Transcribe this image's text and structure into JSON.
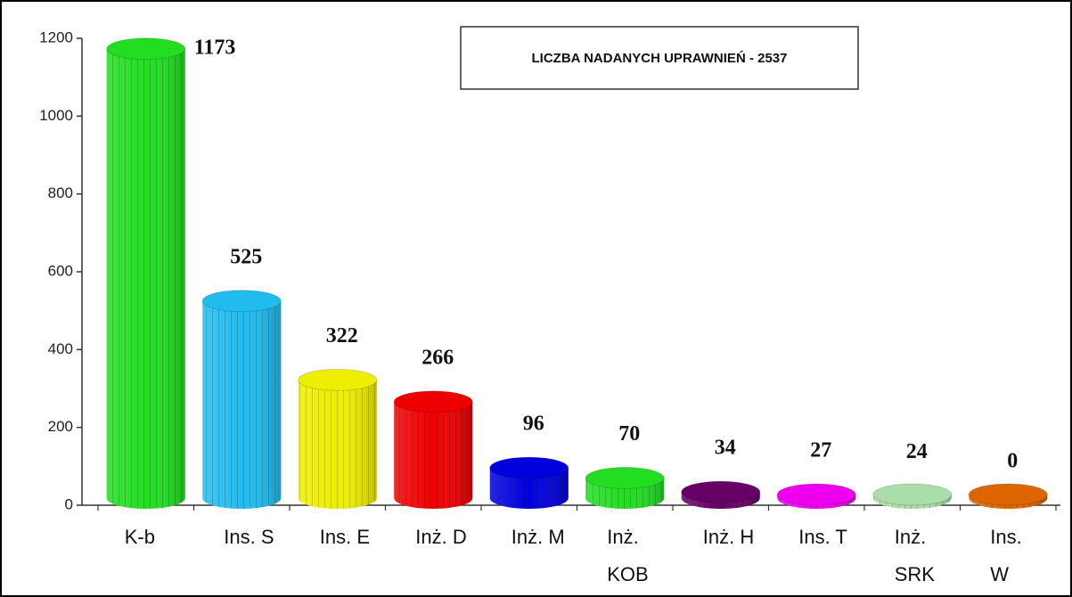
{
  "chart_data": {
    "type": "bar",
    "annotation": "LICZBA NADANYCH  UPRAWNIEŃ  - 2537",
    "categories": [
      "K-b",
      "Ins. S",
      "Ins. E",
      "Inż. D",
      "Inż. M",
      "Inż. KOB",
      "Inż. H",
      "Ins. T",
      "Inż. SRK",
      "Ins. W"
    ],
    "values": [
      1173,
      525,
      322,
      266,
      96,
      70,
      34,
      27,
      24,
      0
    ],
    "colors": [
      "#22dd22",
      "#22bbee",
      "#eeee00",
      "#ee0000",
      "#0000dd",
      "#22dd22",
      "#660066",
      "#ee00ee",
      "#aaddaa",
      "#dd6600"
    ],
    "ylim": [
      0,
      1200
    ],
    "yticks": [
      0,
      200,
      400,
      600,
      800,
      1000,
      1200
    ]
  }
}
